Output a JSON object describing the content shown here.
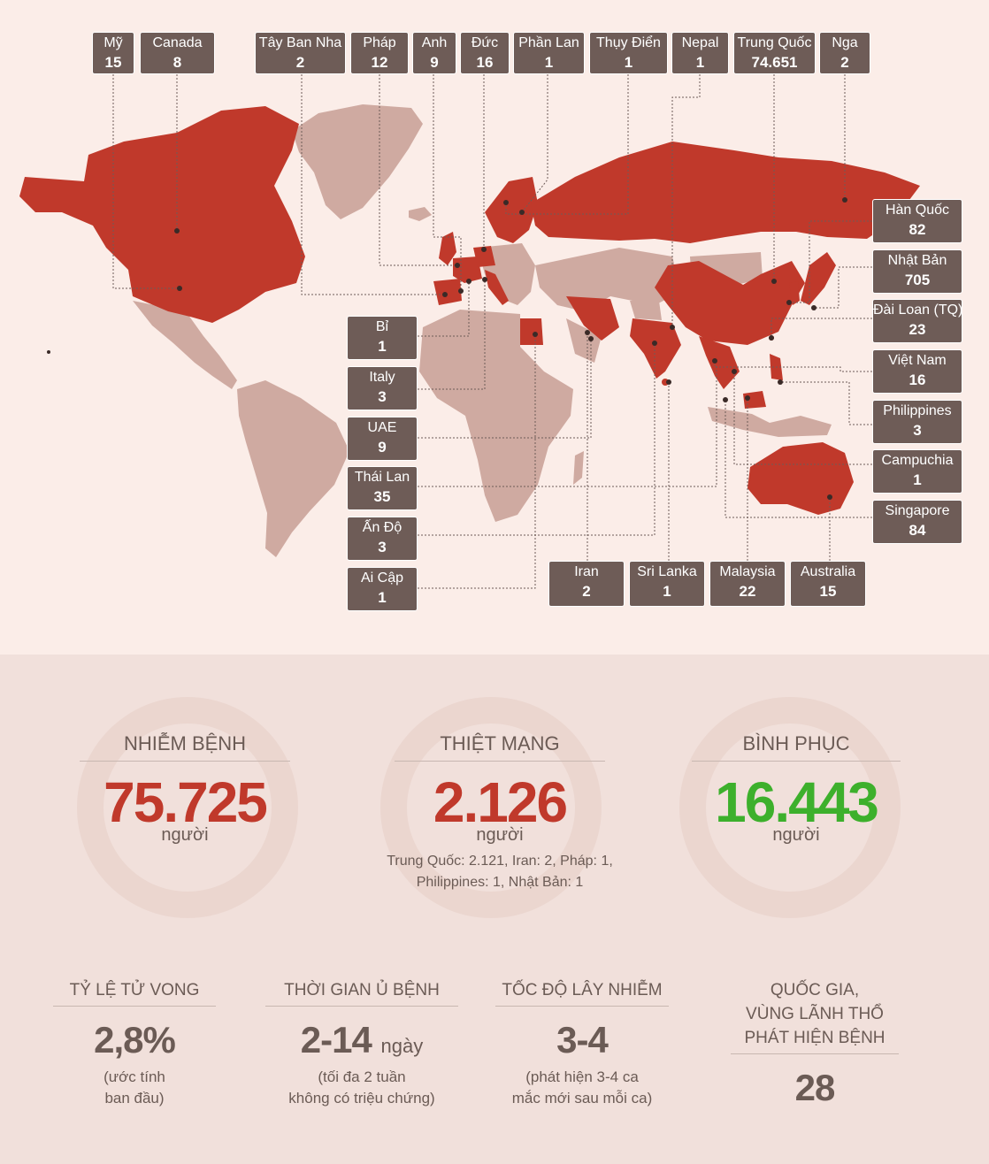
{
  "colors": {
    "infected_country": "#c0392b",
    "other_land": "#cfaaa1",
    "label_bg": "#6e5c57",
    "death_number": "#c0392b",
    "recovered_number": "#3db02c",
    "text": "#6b5b55"
  },
  "countries": [
    {
      "name": "Mỹ",
      "cases": "15"
    },
    {
      "name": "Canada",
      "cases": "8"
    },
    {
      "name": "Tây Ban Nha",
      "cases": "2"
    },
    {
      "name": "Pháp",
      "cases": "12"
    },
    {
      "name": "Anh",
      "cases": "9"
    },
    {
      "name": "Đức",
      "cases": "16"
    },
    {
      "name": "Phần Lan",
      "cases": "1"
    },
    {
      "name": "Thụy Điển",
      "cases": "1"
    },
    {
      "name": "Nepal",
      "cases": "1"
    },
    {
      "name": "Trung Quốc",
      "cases": "74.651"
    },
    {
      "name": "Nga",
      "cases": "2"
    },
    {
      "name": "Hàn Quốc",
      "cases": "82"
    },
    {
      "name": "Nhật Bản",
      "cases": "705"
    },
    {
      "name": "Đài Loan (TQ)",
      "cases": "23"
    },
    {
      "name": "Việt Nam",
      "cases": "16"
    },
    {
      "name": "Philippines",
      "cases": "3"
    },
    {
      "name": "Campuchia",
      "cases": "1"
    },
    {
      "name": "Singapore",
      "cases": "84"
    },
    {
      "name": "Bỉ",
      "cases": "1"
    },
    {
      "name": "Italy",
      "cases": "3"
    },
    {
      "name": "UAE",
      "cases": "9"
    },
    {
      "name": "Thái Lan",
      "cases": "35"
    },
    {
      "name": "Ấn Độ",
      "cases": "3"
    },
    {
      "name": "Ai Cập",
      "cases": "1"
    },
    {
      "name": "Iran",
      "cases": "2"
    },
    {
      "name": "Sri Lanka",
      "cases": "1"
    },
    {
      "name": "Malaysia",
      "cases": "22"
    },
    {
      "name": "Australia",
      "cases": "15"
    }
  ],
  "stats": {
    "infected": {
      "title": "NHIỄM BỆNH",
      "value": "75.725",
      "unit": "người"
    },
    "deaths": {
      "title": "THIỆT MẠNG",
      "value": "2.126",
      "unit": "người",
      "note_line1": "Trung Quốc: 2.121, Iran: 2, Pháp: 1,",
      "note_line2": "Philippines: 1, Nhật Bản: 1"
    },
    "recovered": {
      "title": "BÌNH PHỤC",
      "value": "16.443",
      "unit": "người"
    }
  },
  "facts": {
    "mortality": {
      "title": "TỶ LỆ TỬ VONG",
      "value": "2,8%",
      "note_line1": "(ước tính",
      "note_line2": "ban đầu)"
    },
    "incubation": {
      "title": "THỜI GIAN Ủ BỆNH",
      "value": "2-14",
      "suffix": "ngày",
      "note_line1": "(tối đa 2 tuần",
      "note_line2": "không có triệu chứng)"
    },
    "spread": {
      "title": "TỐC ĐỘ LÂY NHIỄM",
      "value": "3-4",
      "note_line1": "(phát hiện 3-4 ca",
      "note_line2": "mắc mới sau mỗi ca)"
    },
    "countries": {
      "title_line1": "QUỐC GIA,",
      "title_line2": "VÙNG LÃNH THỔ",
      "title_line3": "PHÁT HIỆN BỆNH",
      "value": "28"
    }
  }
}
